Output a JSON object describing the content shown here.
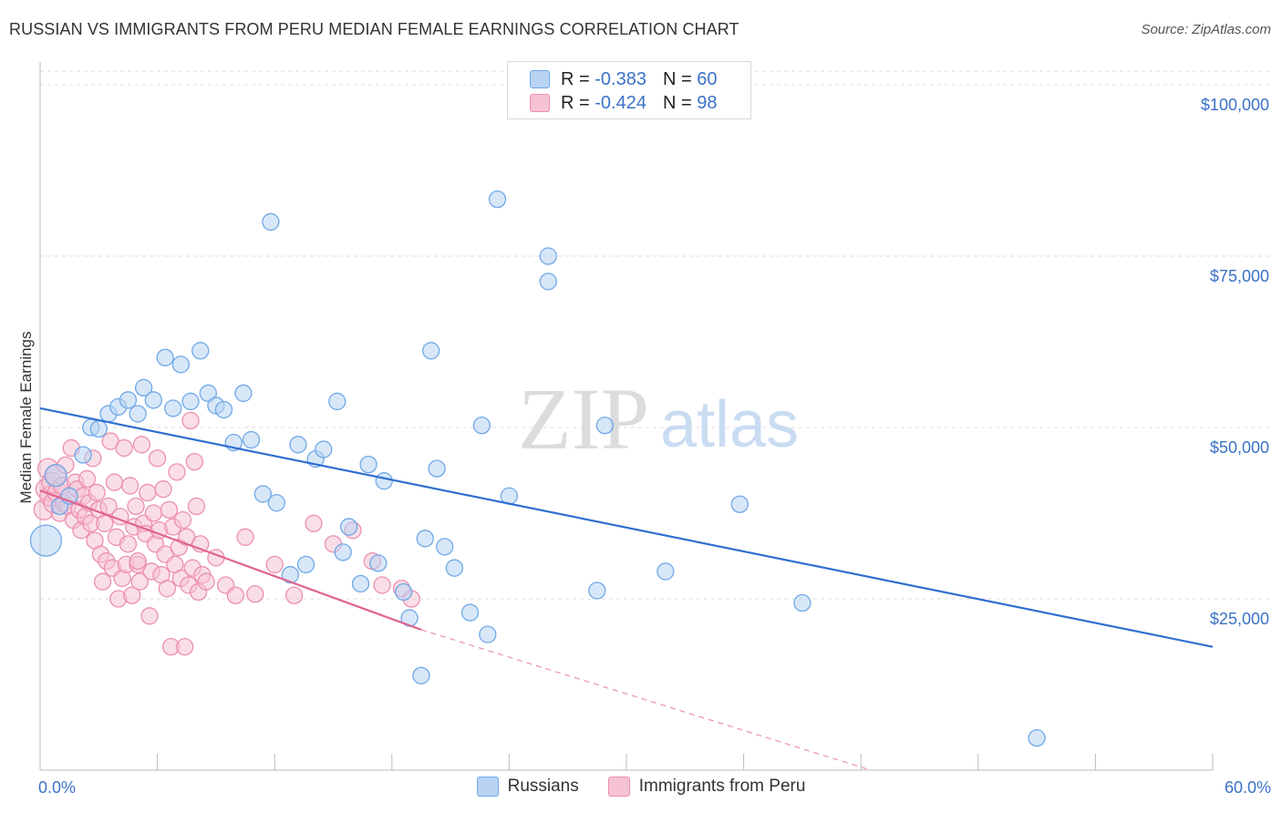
{
  "title": "RUSSIAN VS IMMIGRANTS FROM PERU MEDIAN FEMALE EARNINGS CORRELATION CHART",
  "source": "Source: ZipAtlas.com",
  "watermark": {
    "zip": "ZIP",
    "atlas": "atlas"
  },
  "legend": {
    "rows": [
      {
        "r_label": "R = ",
        "r_value": "-0.383",
        "n_label": "N = ",
        "n_value": "60"
      },
      {
        "r_label": "R = ",
        "r_value": "-0.424",
        "n_label": "N = ",
        "n_value": "98"
      }
    ]
  },
  "chart_data": {
    "type": "scatter",
    "title": "RUSSIAN VS IMMIGRANTS FROM PERU MEDIAN FEMALE EARNINGS CORRELATION CHART",
    "ylabel": "Median Female Earnings",
    "xlabel": "",
    "x_tick_labels": [
      "0.0%",
      "60.0%"
    ],
    "y_tick_labels": [
      "$100,000",
      "$75,000",
      "$50,000",
      "$25,000"
    ],
    "y_ticks": [
      100000,
      75000,
      50000,
      25000
    ],
    "xlim": [
      0,
      60
    ],
    "ylim": [
      0,
      102000
    ],
    "grid": true,
    "legend_position": "top-center",
    "series": [
      {
        "name": "Russians",
        "color": "#6fa8e8",
        "fill": "#b8d3f3",
        "trend": {
          "x": [
            0,
            60
          ],
          "y": [
            52800,
            18000
          ],
          "color": "#2f6fd0"
        },
        "points": [
          [
            0.3,
            33500
          ],
          [
            0.8,
            43000
          ],
          [
            1.0,
            38500
          ],
          [
            2.2,
            46000
          ],
          [
            2.6,
            50000
          ],
          [
            3.0,
            49800
          ],
          [
            3.5,
            52000
          ],
          [
            4.0,
            53000
          ],
          [
            4.5,
            54000
          ],
          [
            5.0,
            52000
          ],
          [
            5.3,
            55800
          ],
          [
            5.8,
            54000
          ],
          [
            6.4,
            60200
          ],
          [
            6.8,
            52800
          ],
          [
            7.2,
            59200
          ],
          [
            7.7,
            53800
          ],
          [
            8.2,
            61200
          ],
          [
            8.6,
            55000
          ],
          [
            9.0,
            53200
          ],
          [
            9.4,
            52600
          ],
          [
            9.9,
            47800
          ],
          [
            10.4,
            55000
          ],
          [
            10.8,
            48200
          ],
          [
            11.4,
            40300
          ],
          [
            11.8,
            80000
          ],
          [
            12.1,
            39000
          ],
          [
            12.8,
            28500
          ],
          [
            13.2,
            47500
          ],
          [
            13.6,
            30000
          ],
          [
            14.1,
            45400
          ],
          [
            14.5,
            46800
          ],
          [
            15.2,
            53800
          ],
          [
            15.5,
            31800
          ],
          [
            15.8,
            35500
          ],
          [
            16.4,
            27200
          ],
          [
            16.8,
            44600
          ],
          [
            17.3,
            30200
          ],
          [
            17.6,
            42200
          ],
          [
            18.6,
            26000
          ],
          [
            18.9,
            22200
          ],
          [
            19.5,
            13800
          ],
          [
            19.7,
            33800
          ],
          [
            20.0,
            61200
          ],
          [
            20.3,
            44000
          ],
          [
            20.7,
            32600
          ],
          [
            21.2,
            29500
          ],
          [
            22.0,
            23000
          ],
          [
            22.6,
            50300
          ],
          [
            22.9,
            19800
          ],
          [
            23.4,
            83300
          ],
          [
            24.0,
            40000
          ],
          [
            26.0,
            75000
          ],
          [
            26.0,
            71300
          ],
          [
            28.5,
            26200
          ],
          [
            28.9,
            50300
          ],
          [
            32.0,
            29000
          ],
          [
            35.8,
            38800
          ],
          [
            39.0,
            24400
          ],
          [
            51.0,
            4700
          ],
          [
            1.5,
            40000
          ]
        ]
      },
      {
        "name": "Immigrants from Peru",
        "color": "#ec8fb0",
        "fill": "#f6c2d4",
        "trend": {
          "x": [
            0,
            19.5
          ],
          "y": [
            40800,
            20500
          ],
          "color": "#e0628e"
        },
        "trend_extension": {
          "x": [
            19.5,
            42.5
          ],
          "y": [
            20500,
            -3200
          ]
        },
        "points": [
          [
            0.2,
            38000
          ],
          [
            0.3,
            41000
          ],
          [
            0.4,
            44000
          ],
          [
            0.5,
            40000
          ],
          [
            0.6,
            42000
          ],
          [
            0.7,
            39000
          ],
          [
            0.8,
            43000
          ],
          [
            0.9,
            40500
          ],
          [
            1.0,
            37500
          ],
          [
            1.1,
            41500
          ],
          [
            1.2,
            39000
          ],
          [
            1.3,
            44500
          ],
          [
            1.4,
            38500
          ],
          [
            1.5,
            40000
          ],
          [
            1.6,
            47000
          ],
          [
            1.7,
            36500
          ],
          [
            1.8,
            42000
          ],
          [
            1.9,
            41000
          ],
          [
            2.0,
            38000
          ],
          [
            2.1,
            35000
          ],
          [
            2.2,
            40000
          ],
          [
            2.3,
            37000
          ],
          [
            2.4,
            42500
          ],
          [
            2.5,
            39000
          ],
          [
            2.6,
            36000
          ],
          [
            2.7,
            45500
          ],
          [
            2.8,
            33500
          ],
          [
            2.9,
            40500
          ],
          [
            3.0,
            38000
          ],
          [
            3.1,
            31500
          ],
          [
            3.2,
            27500
          ],
          [
            3.3,
            36000
          ],
          [
            3.4,
            30500
          ],
          [
            3.5,
            38500
          ],
          [
            3.6,
            48000
          ],
          [
            3.7,
            29500
          ],
          [
            3.8,
            42000
          ],
          [
            3.9,
            34000
          ],
          [
            4.0,
            25000
          ],
          [
            4.1,
            37000
          ],
          [
            4.2,
            28000
          ],
          [
            4.3,
            47000
          ],
          [
            4.4,
            30000
          ],
          [
            4.5,
            33000
          ],
          [
            4.6,
            41500
          ],
          [
            4.7,
            25500
          ],
          [
            4.8,
            35500
          ],
          [
            4.9,
            38500
          ],
          [
            5.0,
            30000
          ],
          [
            5.1,
            27500
          ],
          [
            5.2,
            47500
          ],
          [
            5.3,
            36000
          ],
          [
            5.4,
            34500
          ],
          [
            5.5,
            40500
          ],
          [
            5.6,
            22500
          ],
          [
            5.7,
            29000
          ],
          [
            5.8,
            37500
          ],
          [
            5.9,
            33000
          ],
          [
            6.0,
            45500
          ],
          [
            6.1,
            35000
          ],
          [
            6.2,
            28500
          ],
          [
            6.3,
            41000
          ],
          [
            6.4,
            31500
          ],
          [
            6.5,
            26500
          ],
          [
            6.6,
            38000
          ],
          [
            6.7,
            18000
          ],
          [
            6.8,
            35500
          ],
          [
            6.9,
            30000
          ],
          [
            7.0,
            43500
          ],
          [
            7.1,
            32500
          ],
          [
            7.2,
            28000
          ],
          [
            7.3,
            36500
          ],
          [
            7.4,
            18000
          ],
          [
            7.5,
            34000
          ],
          [
            7.6,
            27000
          ],
          [
            7.7,
            51000
          ],
          [
            7.8,
            29500
          ],
          [
            7.9,
            45000
          ],
          [
            8.0,
            38500
          ],
          [
            8.1,
            26000
          ],
          [
            8.2,
            33000
          ],
          [
            8.3,
            28500
          ],
          [
            8.5,
            27500
          ],
          [
            9.0,
            31000
          ],
          [
            9.5,
            27000
          ],
          [
            10.0,
            25500
          ],
          [
            10.5,
            34000
          ],
          [
            11.0,
            25700
          ],
          [
            12.0,
            30000
          ],
          [
            13.0,
            25500
          ],
          [
            14.0,
            36000
          ],
          [
            15.0,
            33000
          ],
          [
            16.0,
            35000
          ],
          [
            17.0,
            30500
          ],
          [
            17.5,
            27000
          ],
          [
            18.5,
            26500
          ],
          [
            19.0,
            25000
          ],
          [
            5.0,
            30500
          ]
        ]
      }
    ]
  }
}
